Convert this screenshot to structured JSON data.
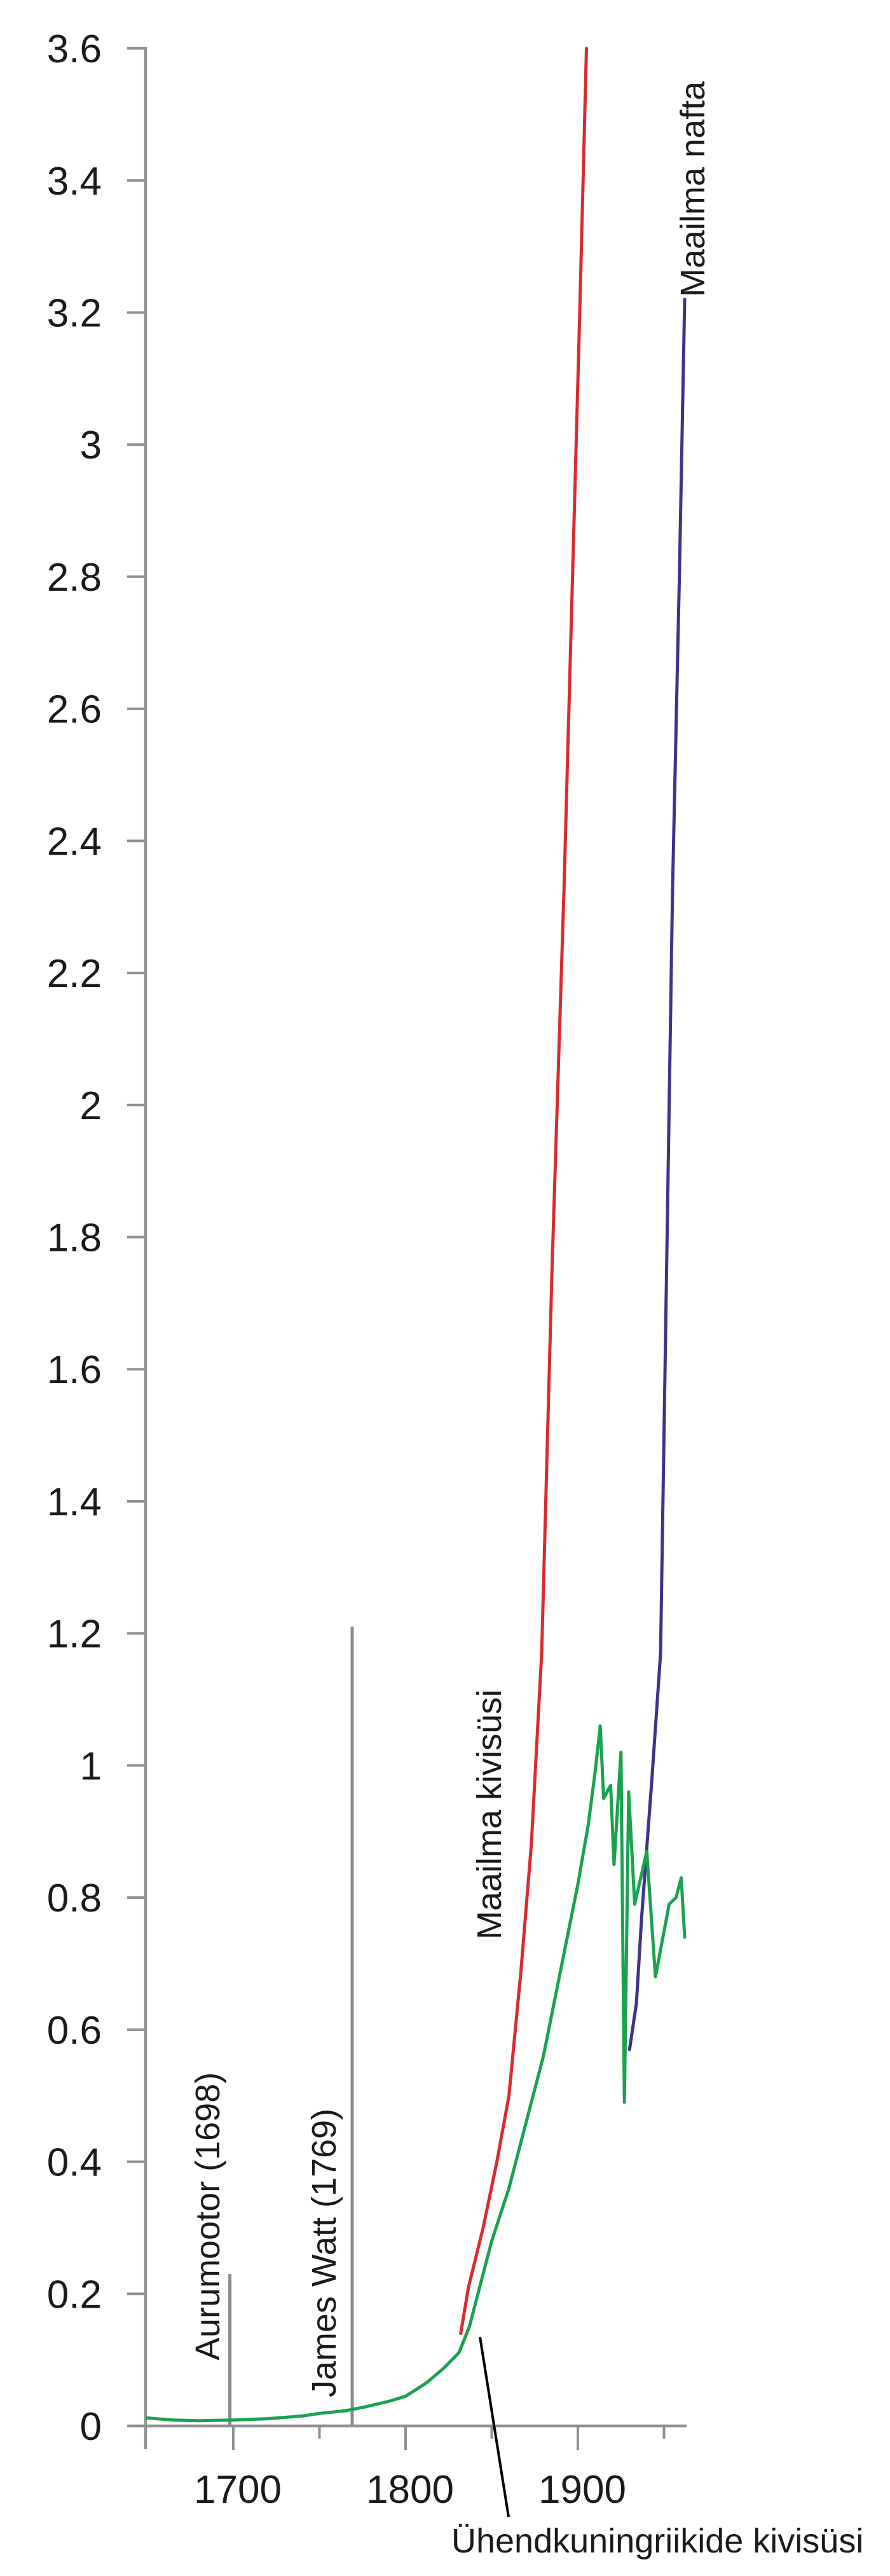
{
  "chart_data": {
    "type": "line",
    "title": "",
    "xlabel": "",
    "ylabel": "",
    "grid": false,
    "legend": "inline-annotations",
    "x_axis": {
      "range": [
        1650,
        1963
      ],
      "ticks": [
        {
          "year": 1700,
          "label": "1700",
          "major": true
        },
        {
          "year": 1750,
          "label": "",
          "major": false
        },
        {
          "year": 1800,
          "label": "1800",
          "major": true
        },
        {
          "year": 1850,
          "label": "",
          "major": false
        },
        {
          "year": 1900,
          "label": "1900",
          "major": true
        },
        {
          "year": 1950,
          "label": "",
          "major": false
        }
      ]
    },
    "y_axis": {
      "range": [
        0,
        3.6
      ],
      "ticks": [
        {
          "value": 0,
          "label": "0"
        },
        {
          "value": 0.2,
          "label": "0.2"
        },
        {
          "value": 0.4,
          "label": "0.4"
        },
        {
          "value": 0.6,
          "label": "0.6"
        },
        {
          "value": 0.8,
          "label": "0.8"
        },
        {
          "value": 1,
          "label": "1"
        },
        {
          "value": 1.2,
          "label": "1.2"
        },
        {
          "value": 1.4,
          "label": "1.4"
        },
        {
          "value": 1.6,
          "label": "1.6"
        },
        {
          "value": 1.8,
          "label": "1.8"
        },
        {
          "value": 2,
          "label": "2"
        },
        {
          "value": 2.2,
          "label": "2.2"
        },
        {
          "value": 2.4,
          "label": "2.4"
        },
        {
          "value": 2.6,
          "label": "2.6"
        },
        {
          "value": 2.8,
          "label": "2.8"
        },
        {
          "value": 3,
          "label": "3"
        },
        {
          "value": 3.2,
          "label": "3.2"
        },
        {
          "value": 3.4,
          "label": "3.4"
        },
        {
          "value": 3.6,
          "label": "3.6"
        }
      ]
    },
    "series": [
      {
        "id": "world-coal",
        "name": "Maailma kivisüsi",
        "color": "#d92b2f",
        "points": [
          [
            1832,
            0.14
          ],
          [
            1836.5,
            0.21
          ],
          [
            1845,
            0.3
          ],
          [
            1853,
            0.4
          ],
          [
            1860,
            0.5
          ],
          [
            1867,
            0.69
          ],
          [
            1873,
            0.88
          ],
          [
            1879,
            1.17
          ],
          [
            1885,
            1.75
          ],
          [
            1892,
            2.33
          ],
          [
            1897,
            2.81
          ],
          [
            1901,
            3.19
          ],
          [
            1905,
            3.6
          ]
        ]
      },
      {
        "id": "world-oil",
        "name": "Maailma nafta",
        "color": "#3b3589",
        "points": [
          [
            1930,
            0.57
          ],
          [
            1934,
            0.64
          ],
          [
            1937,
            0.77
          ],
          [
            1943,
            0.98
          ],
          [
            1948,
            1.17
          ],
          [
            1955,
            2.33
          ],
          [
            1959,
            2.81
          ],
          [
            1962,
            3.22
          ]
        ]
      },
      {
        "id": "uk-coal",
        "name": "Ühendkuningriikide kivisüsi",
        "color": "#1aa24f",
        "points": [
          [
            1650,
            0.012
          ],
          [
            1665,
            0.009
          ],
          [
            1680,
            0.008
          ],
          [
            1700,
            0.009
          ],
          [
            1720,
            0.011
          ],
          [
            1740,
            0.015
          ],
          [
            1750,
            0.019
          ],
          [
            1765,
            0.023
          ],
          [
            1775,
            0.028
          ],
          [
            1790,
            0.037
          ],
          [
            1800,
            0.045
          ],
          [
            1812,
            0.065
          ],
          [
            1822,
            0.087
          ],
          [
            1831,
            0.111
          ],
          [
            1837,
            0.15
          ],
          [
            1843,
            0.21
          ],
          [
            1850,
            0.28
          ],
          [
            1860,
            0.36
          ],
          [
            1870,
            0.46
          ],
          [
            1880,
            0.56
          ],
          [
            1890,
            0.69
          ],
          [
            1900,
            0.82
          ],
          [
            1906,
            0.91
          ],
          [
            1910,
            0.99
          ],
          [
            1913,
            1.06
          ],
          [
            1915,
            0.95
          ],
          [
            1919,
            0.97
          ],
          [
            1921,
            0.85
          ],
          [
            1925,
            1.02
          ],
          [
            1927,
            0.49
          ],
          [
            1929.5,
            0.96
          ],
          [
            1933,
            0.79
          ],
          [
            1940,
            0.87
          ],
          [
            1945,
            0.68
          ],
          [
            1953,
            0.79
          ],
          [
            1957,
            0.8
          ],
          [
            1960,
            0.83
          ],
          [
            1962,
            0.74
          ]
        ]
      }
    ],
    "event_lines": [
      {
        "label": "Aurumootor (1698)",
        "year": 1698,
        "value_top": 0.23
      },
      {
        "label": "James Watt (1769)",
        "year": 1769,
        "value_top": 1.21
      }
    ],
    "callout": {
      "for_series": "uk-coal",
      "label": "Ühendkuningriikide kivisüsi"
    },
    "colors": {
      "axis": "#909090",
      "event_line": "#8a8a8a",
      "text": "#1a1a1a",
      "callout_line": "#000000",
      "background": "#ffffff"
    }
  }
}
